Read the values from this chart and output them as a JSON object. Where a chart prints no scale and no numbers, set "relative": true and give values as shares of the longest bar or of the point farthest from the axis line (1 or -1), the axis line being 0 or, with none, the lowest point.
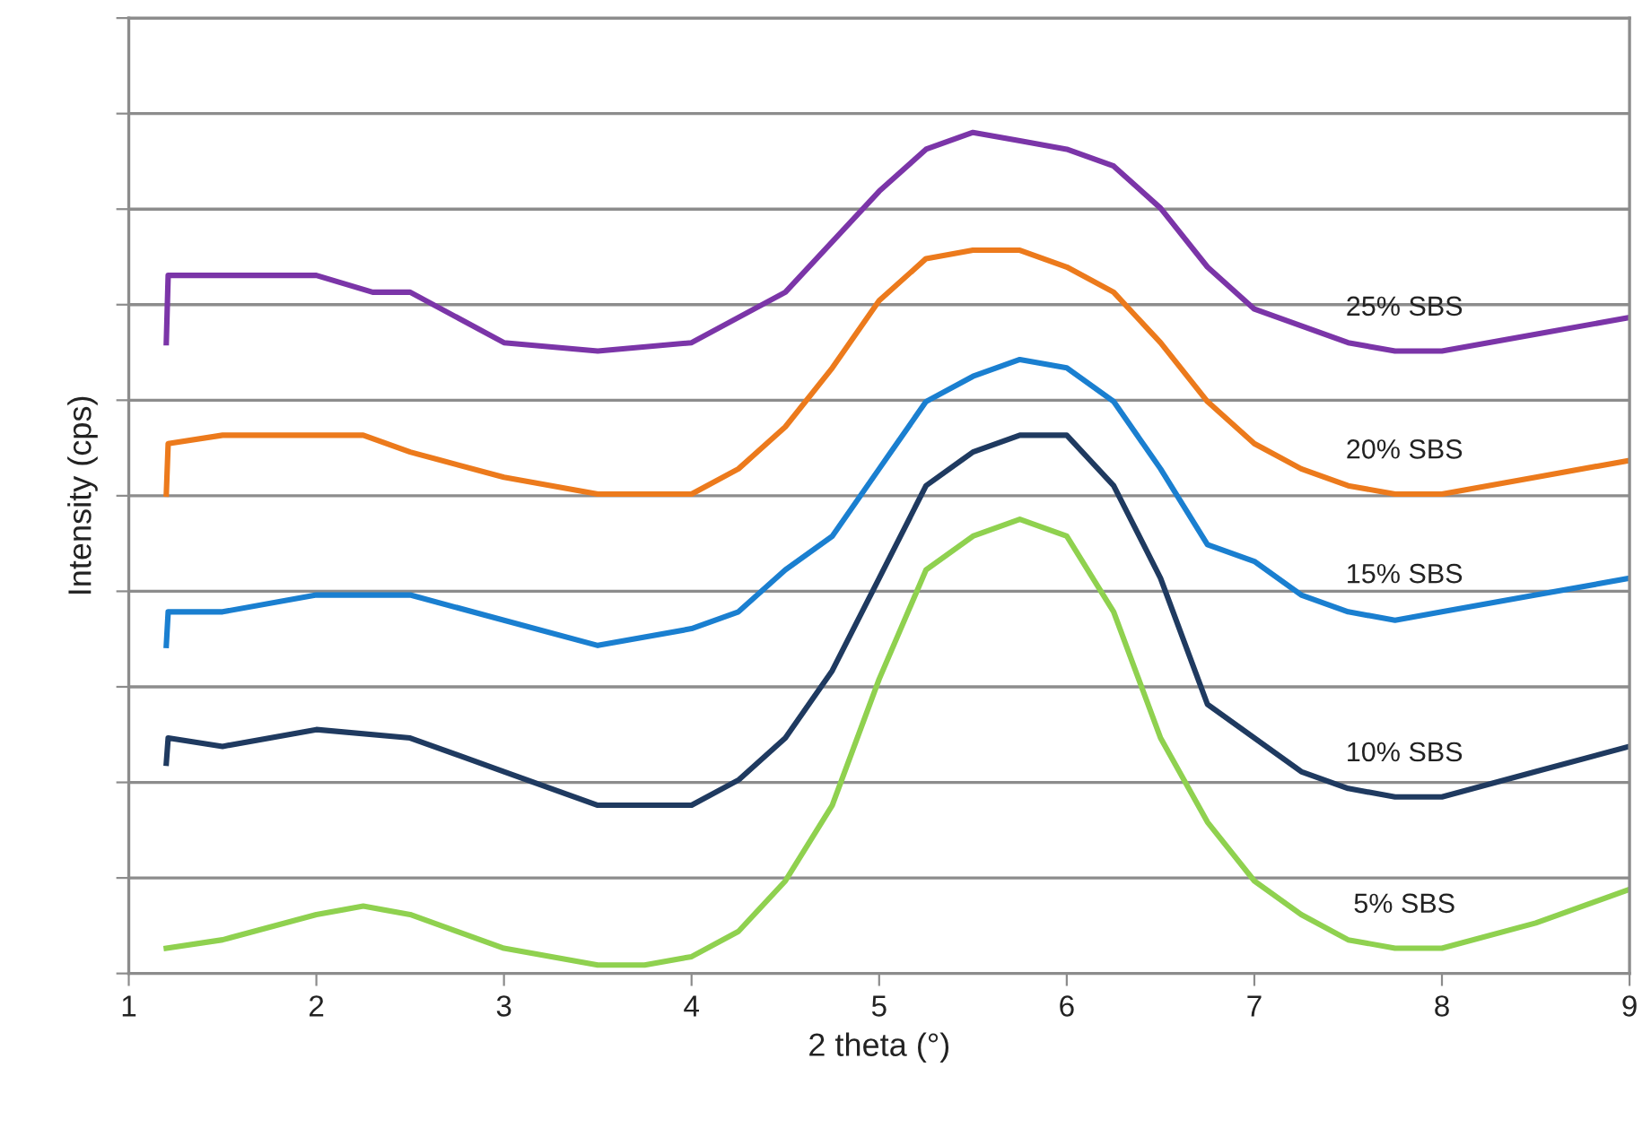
{
  "chart_data": {
    "type": "line",
    "relative": true,
    "xlabel": "2 theta (°)",
    "ylabel": "Intensity (cps)",
    "xlim": [
      1,
      9
    ],
    "xticks": [
      1,
      2,
      3,
      4,
      5,
      6,
      7,
      8,
      9
    ],
    "grid": "y",
    "legend": false,
    "marker": "none",
    "line_style": "solid",
    "series": [
      {
        "name": "25% SBS",
        "color": "#7b35a8",
        "x": [
          1.2,
          1.21,
          1.5,
          2,
          2.3,
          2.5,
          3,
          3.5,
          4,
          4.5,
          5,
          5.25,
          5.5,
          5.75,
          6,
          6.25,
          6.5,
          6.75,
          7,
          7.5,
          7.75,
          8,
          8.5,
          9
        ],
        "values": [
          0.75,
          0.83,
          0.83,
          0.83,
          0.81,
          0.81,
          0.75,
          0.74,
          0.75,
          0.81,
          0.93,
          0.98,
          1.0,
          0.99,
          0.98,
          0.96,
          0.91,
          0.84,
          0.79,
          0.75,
          0.74,
          0.74,
          0.76,
          0.78
        ]
      },
      {
        "name": "20% SBS",
        "color": "#ec7a1c",
        "x": [
          1.2,
          1.21,
          1.5,
          1.75,
          2,
          2.25,
          2.5,
          3,
          3.5,
          4,
          4.25,
          4.5,
          4.75,
          5,
          5.25,
          5.5,
          5.75,
          6,
          6.25,
          6.5,
          6.75,
          7,
          7.25,
          7.5,
          7.75,
          8,
          8.5,
          9
        ],
        "values": [
          0.57,
          0.63,
          0.64,
          0.64,
          0.64,
          0.64,
          0.62,
          0.59,
          0.57,
          0.57,
          0.6,
          0.65,
          0.72,
          0.8,
          0.85,
          0.86,
          0.86,
          0.84,
          0.81,
          0.75,
          0.68,
          0.63,
          0.6,
          0.58,
          0.57,
          0.57,
          0.59,
          0.61
        ]
      },
      {
        "name": "15% SBS",
        "color": "#1a7fd0",
        "x": [
          1.2,
          1.21,
          1.5,
          2,
          2.5,
          3,
          3.5,
          4,
          4.25,
          4.5,
          4.75,
          5,
          5.25,
          5.5,
          5.75,
          6,
          6.25,
          6.5,
          6.75,
          7,
          7.25,
          7.5,
          7.75,
          8,
          8.5,
          9
        ],
        "values": [
          0.39,
          0.43,
          0.43,
          0.45,
          0.45,
          0.42,
          0.39,
          0.41,
          0.43,
          0.48,
          0.52,
          0.6,
          0.68,
          0.71,
          0.73,
          0.72,
          0.68,
          0.6,
          0.51,
          0.49,
          0.45,
          0.43,
          0.42,
          0.43,
          0.45,
          0.47
        ]
      },
      {
        "name": "10% SBS",
        "color": "#1f3a60",
        "x": [
          1.2,
          1.21,
          1.5,
          2,
          2.5,
          3,
          3.5,
          4,
          4.25,
          4.5,
          4.75,
          5,
          5.25,
          5.5,
          5.75,
          6,
          6.25,
          6.5,
          6.75,
          7,
          7.25,
          7.5,
          7.75,
          8,
          8.5,
          9
        ],
        "values": [
          0.25,
          0.28,
          0.27,
          0.29,
          0.28,
          0.24,
          0.2,
          0.2,
          0.23,
          0.28,
          0.36,
          0.47,
          0.58,
          0.62,
          0.64,
          0.64,
          0.58,
          0.47,
          0.32,
          0.28,
          0.24,
          0.22,
          0.21,
          0.21,
          0.24,
          0.27
        ]
      },
      {
        "name": "5% SBS",
        "color": "#8fd14f",
        "x": [
          1.2,
          1.5,
          2,
          2.25,
          2.5,
          3,
          3.5,
          3.75,
          4,
          4.25,
          4.5,
          4.75,
          5,
          5.25,
          5.5,
          5.75,
          6,
          6.25,
          6.5,
          6.75,
          7,
          7.25,
          7.5,
          7.75,
          8,
          8.5,
          9
        ],
        "values": [
          0.03,
          0.04,
          0.07,
          0.08,
          0.07,
          0.03,
          0.01,
          0.01,
          0.02,
          0.05,
          0.11,
          0.2,
          0.35,
          0.48,
          0.52,
          0.54,
          0.52,
          0.43,
          0.28,
          0.18,
          0.11,
          0.07,
          0.04,
          0.03,
          0.03,
          0.06,
          0.1
        ]
      }
    ]
  }
}
